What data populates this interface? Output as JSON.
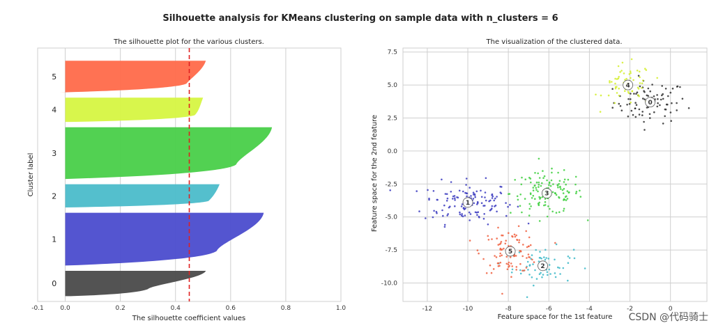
{
  "figure": {
    "suptitle": "Silhouette analysis for KMeans clustering on sample data with n_clusters = 6",
    "watermark": "CSDN @代码骑士"
  },
  "chart_data": [
    {
      "type": "silhouette",
      "title": "The silhouette plot for the various clusters.",
      "xlabel": "The silhouette coefficient values",
      "ylabel": "Cluster label",
      "xlim": [
        -0.1,
        1.0
      ],
      "ylim": [
        0,
        480
      ],
      "xticks": [
        "-0.1",
        "0.0",
        "0.2",
        "0.4",
        "0.6",
        "0.8",
        "1.0"
      ],
      "xtick_values": [
        -0.1,
        0.0,
        0.2,
        0.4,
        0.6,
        0.8,
        1.0
      ],
      "average_score": 0.45,
      "clusters": [
        {
          "label": "0",
          "y_lower": 10,
          "y_upper": 58,
          "max": 0.51,
          "mid": 0.3,
          "min": 0.02,
          "color": "#4a4a4a"
        },
        {
          "label": "1",
          "y_lower": 68,
          "y_upper": 168,
          "max": 0.72,
          "mid": 0.55,
          "min": 0.0,
          "color": "#4b4ccd"
        },
        {
          "label": "2",
          "y_lower": 178,
          "y_upper": 222,
          "max": 0.56,
          "mid": 0.52,
          "min": 0.0,
          "color": "#4bbcca"
        },
        {
          "label": "3",
          "y_lower": 232,
          "y_upper": 330,
          "max": 0.75,
          "mid": 0.62,
          "min": 0.0,
          "color": "#49cf49"
        },
        {
          "label": "4",
          "y_lower": 340,
          "y_upper": 386,
          "max": 0.5,
          "mid": 0.47,
          "min": 0.02,
          "color": "#d6f542"
        },
        {
          "label": "5",
          "y_lower": 396,
          "y_upper": 456,
          "max": 0.51,
          "mid": 0.44,
          "min": -0.02,
          "color": "#ff6a4a"
        }
      ]
    },
    {
      "type": "scatter",
      "title": "The visualization of the clustered data.",
      "xlabel": "Feature space for the 1st feature",
      "ylabel": "Feature space for the 2nd feature",
      "xlim": [
        -13.2,
        1.8
      ],
      "ylim": [
        -11.4,
        7.8
      ],
      "xticks": [
        "-12",
        "-10",
        "-8",
        "-6",
        "-4",
        "-2",
        "0"
      ],
      "xtick_values": [
        -12,
        -10,
        -8,
        -6,
        -4,
        -2,
        0
      ],
      "yticks": [
        "-10.0",
        "-7.5",
        "-5.0",
        "-2.5",
        "0.0",
        "2.5",
        "5.0",
        "7.5"
      ],
      "ytick_values": [
        -10.0,
        -7.5,
        -5.0,
        -2.5,
        0.0,
        2.5,
        5.0,
        7.5
      ],
      "clusters": [
        {
          "label": "0",
          "center": [
            -1.0,
            3.7
          ],
          "spread": [
            0.9,
            0.8
          ],
          "n": 85,
          "color": "#2e2e2e"
        },
        {
          "label": "1",
          "center": [
            -10.0,
            -3.9
          ],
          "spread": [
            1.1,
            0.8
          ],
          "n": 130,
          "color": "#3b3bbf"
        },
        {
          "label": "2",
          "center": [
            -6.3,
            -8.7
          ],
          "spread": [
            0.75,
            0.7
          ],
          "n": 60,
          "color": "#3cb8c8"
        },
        {
          "label": "3",
          "center": [
            -6.1,
            -3.2
          ],
          "spread": [
            0.9,
            0.8
          ],
          "n": 130,
          "color": "#3ecf3e"
        },
        {
          "label": "4",
          "center": [
            -2.1,
            5.0
          ],
          "spread": [
            0.6,
            0.8
          ],
          "n": 60,
          "color": "#d4ef2c"
        },
        {
          "label": "5",
          "center": [
            -7.9,
            -7.6
          ],
          "spread": [
            0.7,
            0.8
          ],
          "n": 95,
          "color": "#f06040"
        }
      ]
    }
  ]
}
